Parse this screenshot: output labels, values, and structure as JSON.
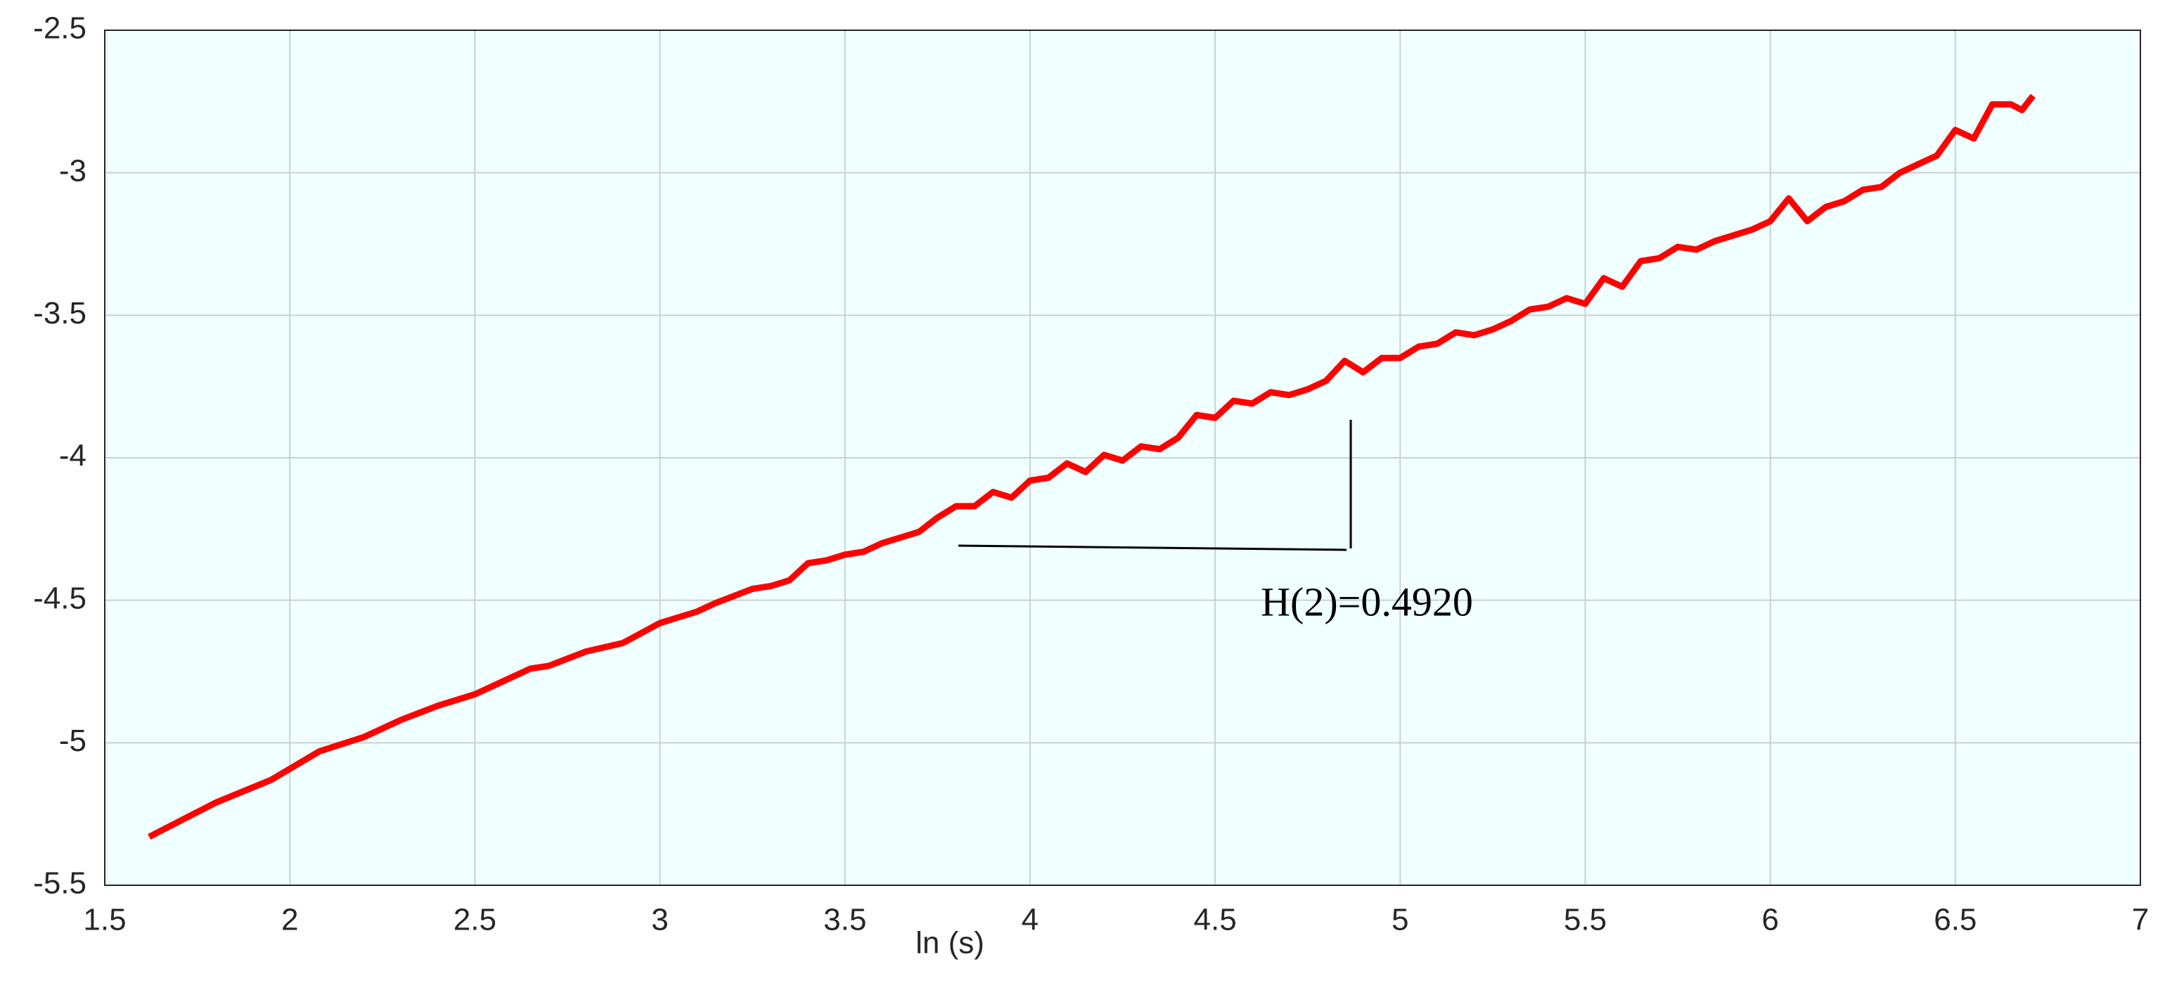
{
  "chart_data": {
    "type": "line",
    "xlabel": "ln (s)",
    "annotation": "H(2)=0.4920",
    "color": "#ff0000",
    "background": "#f0ffff",
    "grid": true,
    "xlim": [
      1.5,
      7
    ],
    "ylim": [
      -5.5,
      -2.5
    ],
    "xticks": [
      1.5,
      2,
      2.5,
      3,
      3.5,
      4,
      4.5,
      5,
      5.5,
      6,
      6.5,
      7
    ],
    "yticks": [
      -5.5,
      -5,
      -4.5,
      -4,
      -3.5,
      -3,
      -2.5
    ],
    "x": [
      1.62,
      1.8,
      1.95,
      2.08,
      2.2,
      2.3,
      2.4,
      2.5,
      2.6,
      2.65,
      2.7,
      2.8,
      2.9,
      3.0,
      3.1,
      3.15,
      3.25,
      3.3,
      3.35,
      3.4,
      3.45,
      3.5,
      3.55,
      3.6,
      3.7,
      3.75,
      3.8,
      3.85,
      3.9,
      3.95,
      4.0,
      4.05,
      4.1,
      4.15,
      4.2,
      4.25,
      4.3,
      4.35,
      4.4,
      4.45,
      4.5,
      4.55,
      4.6,
      4.65,
      4.7,
      4.75,
      4.8,
      4.85,
      4.9,
      4.95,
      5.0,
      5.05,
      5.1,
      5.15,
      5.2,
      5.25,
      5.3,
      5.35,
      5.4,
      5.45,
      5.5,
      5.55,
      5.6,
      5.65,
      5.7,
      5.75,
      5.8,
      5.85,
      5.9,
      5.95,
      6.0,
      6.05,
      6.1,
      6.15,
      6.2,
      6.25,
      6.3,
      6.35,
      6.4,
      6.45,
      6.5,
      6.55,
      6.6,
      6.65,
      6.68,
      6.71
    ],
    "values": [
      -5.33,
      -5.21,
      -5.13,
      -5.03,
      -4.98,
      -4.92,
      -4.87,
      -4.83,
      -4.77,
      -4.74,
      -4.73,
      -4.68,
      -4.65,
      -4.58,
      -4.54,
      -4.51,
      -4.46,
      -4.45,
      -4.43,
      -4.37,
      -4.36,
      -4.34,
      -4.33,
      -4.3,
      -4.26,
      -4.21,
      -4.17,
      -4.17,
      -4.12,
      -4.14,
      -4.08,
      -4.07,
      -4.02,
      -4.05,
      -3.99,
      -4.01,
      -3.96,
      -3.97,
      -3.93,
      -3.85,
      -3.86,
      -3.8,
      -3.81,
      -3.77,
      -3.78,
      -3.76,
      -3.73,
      -3.66,
      -3.7,
      -3.65,
      -3.65,
      -3.61,
      -3.6,
      -3.56,
      -3.57,
      -3.55,
      -3.52,
      -3.48,
      -3.47,
      -3.44,
      -3.46,
      -3.37,
      -3.4,
      -3.31,
      -3.3,
      -3.26,
      -3.27,
      -3.24,
      -3.22,
      -3.2,
      -3.17,
      -3.09,
      -3.17,
      -3.12,
      -3.1,
      -3.06,
      -3.05,
      -3.0,
      -2.97,
      -2.94,
      -2.85,
      -2.88,
      -2.76,
      -2.76,
      -2.78,
      -2.73
    ]
  }
}
